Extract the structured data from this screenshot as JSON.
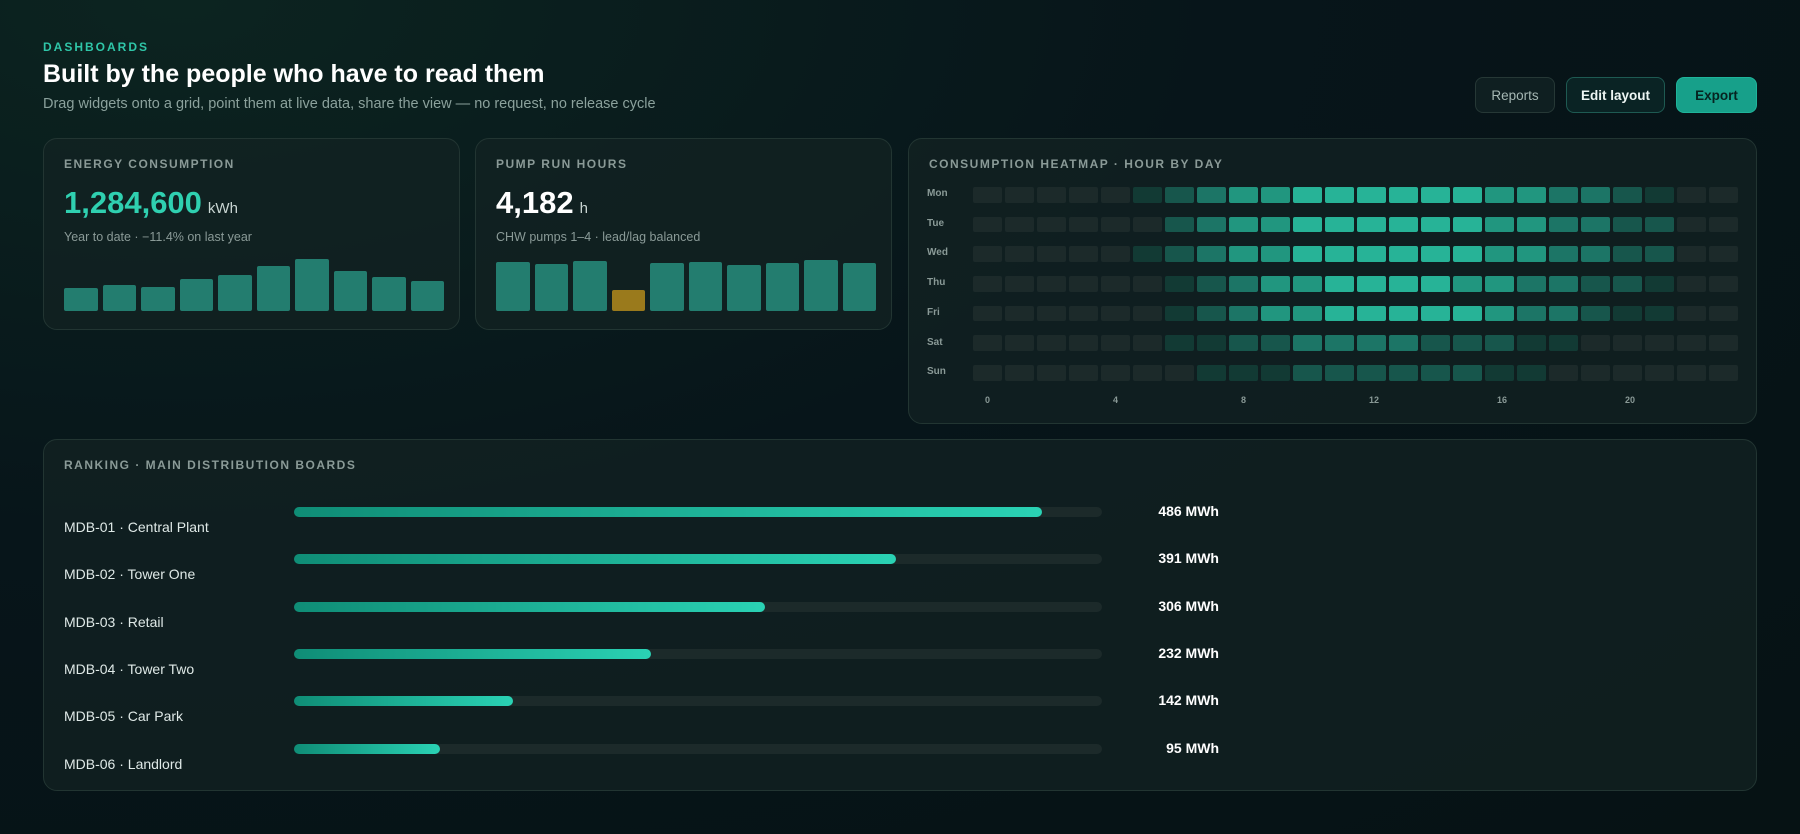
{
  "header": {
    "eyebrow": "DASHBOARDS",
    "title": "Built by the people who have to read them",
    "subtitle": "Drag widgets onto a grid, point them at live data, share the view — no request, no release cycle"
  },
  "actions": {
    "reports": "Reports",
    "edit_layout": "Edit layout",
    "export": "Export"
  },
  "energy": {
    "label": "ENERGY CONSUMPTION",
    "value": "1,284,600",
    "unit": "kWh",
    "note": "Year to date · −11.4% on last year",
    "bars": [
      0.45,
      0.5,
      0.46,
      0.62,
      0.7,
      0.86,
      1.0,
      0.77,
      0.66,
      0.58
    ],
    "bar_color": "#237d6f"
  },
  "pump": {
    "label": "PUMP RUN HOURS",
    "value": "4,182",
    "unit": "h",
    "note": "CHW pumps 1–4 · lead/lag balanced",
    "bars": [
      0.95,
      0.9,
      0.97,
      0.4,
      0.92,
      0.94,
      0.88,
      0.93,
      0.98,
      0.92
    ],
    "highlight_index": 3,
    "bar_color": "#237d6f",
    "highlight_color": "#9a7a1c"
  },
  "heatmap": {
    "label": "CONSUMPTION HEATMAP · HOUR BY DAY",
    "days": [
      "Mon",
      "Tue",
      "Wed",
      "Thu",
      "Fri",
      "Sat",
      "Sun"
    ],
    "hour_labels": [
      "0",
      "4",
      "8",
      "12",
      "16",
      "20"
    ],
    "levels": [
      [
        0,
        0,
        0,
        0,
        0,
        1,
        2,
        3,
        4,
        4,
        5,
        5,
        5,
        5,
        5,
        5,
        4,
        4,
        3,
        3,
        2,
        1,
        0,
        0
      ],
      [
        0,
        0,
        0,
        0,
        0,
        0,
        2,
        3,
        4,
        4,
        5,
        5,
        5,
        5,
        5,
        5,
        4,
        4,
        3,
        3,
        2,
        2,
        0,
        0
      ],
      [
        0,
        0,
        0,
        0,
        0,
        1,
        2,
        3,
        4,
        4,
        5,
        5,
        5,
        5,
        5,
        5,
        4,
        4,
        3,
        3,
        2,
        2,
        0,
        0
      ],
      [
        0,
        0,
        0,
        0,
        0,
        0,
        1,
        2,
        3,
        4,
        4,
        5,
        5,
        5,
        5,
        4,
        4,
        3,
        3,
        2,
        2,
        1,
        0,
        0
      ],
      [
        0,
        0,
        0,
        0,
        0,
        0,
        1,
        2,
        3,
        4,
        4,
        5,
        5,
        5,
        5,
        5,
        4,
        3,
        3,
        2,
        1,
        1,
        0,
        0
      ],
      [
        0,
        0,
        0,
        0,
        0,
        0,
        1,
        1,
        2,
        2,
        3,
        3,
        3,
        3,
        2,
        2,
        2,
        1,
        1,
        0,
        0,
        0,
        0,
        0
      ],
      [
        0,
        0,
        0,
        0,
        0,
        0,
        0,
        1,
        1,
        1,
        2,
        2,
        2,
        2,
        2,
        2,
        1,
        1,
        0,
        0,
        0,
        0,
        0,
        0
      ]
    ],
    "palette": [
      "#1c2a2a",
      "#123a34",
      "#17564c",
      "#1c7566",
      "#21967f",
      "#27b397"
    ]
  },
  "ranking": {
    "label": "RANKING · MAIN DISTRIBUTION BOARDS",
    "max": 525,
    "items": [
      {
        "name": "MDB-01 · Central Plant",
        "value": 486,
        "display": "486 MWh"
      },
      {
        "name": "MDB-02 · Tower One",
        "value": 391,
        "display": "391 MWh"
      },
      {
        "name": "MDB-03 · Retail",
        "value": 306,
        "display": "306 MWh"
      },
      {
        "name": "MDB-04 · Tower Two",
        "value": 232,
        "display": "232 MWh"
      },
      {
        "name": "MDB-05 · Car Park",
        "value": 142,
        "display": "142 MWh"
      },
      {
        "name": "MDB-06 · Landlord",
        "value": 95,
        "display": "95 MWh"
      }
    ]
  }
}
